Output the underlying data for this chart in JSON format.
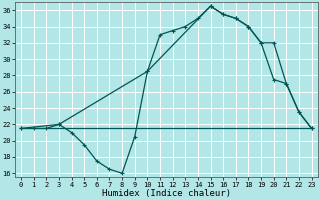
{
  "xlabel": "Humidex (Indice chaleur)",
  "background_color": "#b3e6e6",
  "grid_color": "#ffffff",
  "line_color": "#005555",
  "xlim": [
    -0.5,
    23.5
  ],
  "ylim": [
    15.5,
    37.0
  ],
  "yticks": [
    16,
    18,
    20,
    22,
    24,
    26,
    28,
    30,
    32,
    34,
    36
  ],
  "xticks": [
    0,
    1,
    2,
    3,
    4,
    5,
    6,
    7,
    8,
    9,
    10,
    11,
    12,
    13,
    14,
    15,
    16,
    17,
    18,
    19,
    20,
    21,
    22,
    23
  ],
  "series1_x": [
    0,
    1,
    2,
    3,
    4,
    5,
    6,
    7,
    8,
    9,
    10,
    11,
    12,
    13,
    14,
    15,
    16,
    17,
    18,
    19,
    20,
    21,
    22,
    23
  ],
  "series1_y": [
    21.5,
    21.5,
    21.5,
    22.0,
    21.0,
    19.5,
    17.5,
    16.5,
    16.0,
    20.5,
    28.5,
    33.0,
    33.5,
    34.0,
    35.0,
    36.5,
    35.5,
    35.0,
    34.0,
    32.0,
    27.5,
    27.0,
    23.5,
    21.5
  ],
  "series2_x": [
    0,
    3,
    10,
    15,
    16,
    17,
    18,
    19,
    20,
    21,
    22,
    23
  ],
  "series2_y": [
    21.5,
    22.0,
    28.5,
    36.5,
    35.5,
    35.0,
    34.0,
    32.0,
    32.0,
    27.0,
    23.5,
    21.5
  ],
  "series3_x": [
    0,
    23
  ],
  "series3_y": [
    21.5,
    21.5
  ]
}
